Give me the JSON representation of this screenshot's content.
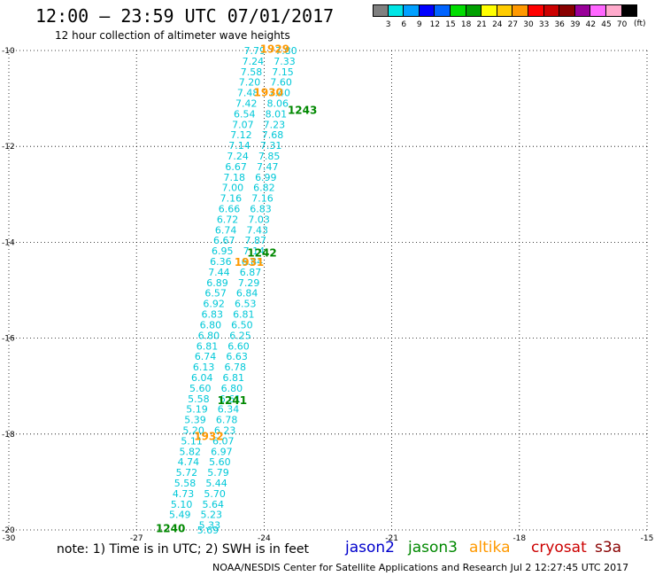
{
  "title": "12:00 – 23:59 UTC 07/01/2017",
  "subtitle": "12 hour collection of altimeter wave heights",
  "note": "note: 1) Time is in UTC; 2) SWH is in feet",
  "satellites": [
    {
      "name": "jason2",
      "color": "#0000cc"
    },
    {
      "name": "jason3",
      "color": "#008800"
    },
    {
      "name": "altika",
      "color": "#ff9900"
    },
    {
      "name": "cryosat",
      "color": "#cc0000"
    },
    {
      "name": "s3a",
      "color": "#880000"
    }
  ],
  "credit": "NOAA/NESDIS Center for Satellite Applications and Research    Jul  2 12:27:45 UTC 2017",
  "colorbar": {
    "labels": [
      "3",
      "6",
      "9",
      "12",
      "15",
      "18",
      "21",
      "24",
      "27",
      "30",
      "33",
      "36",
      "39",
      "42",
      "45",
      "70"
    ],
    "unit": "(ft)",
    "colors": [
      "#808080",
      "#00e5e5",
      "#00a0ff",
      "#0000ff",
      "#0064ff",
      "#00dd00",
      "#00a000",
      "#ffff00",
      "#ffcc00",
      "#ff9900",
      "#ff0000",
      "#cc0000",
      "#880000",
      "#990099",
      "#ff66ff",
      "#ffaacc",
      "#000000"
    ]
  },
  "chart_data": {
    "type": "scatter",
    "xlim": [
      -30,
      -15
    ],
    "ylim": [
      -20,
      -10
    ],
    "x_ticks": [
      "-30",
      "-27",
      "-24",
      "-21",
      "-18",
      "-15"
    ],
    "y_ticks": [
      "-10",
      "-12",
      "-14",
      "-16",
      "-18",
      "-20"
    ],
    "grid": true,
    "series": [
      {
        "name": "jason3",
        "color": "#00c8d8",
        "points": [
          {
            "lon": -24.22,
            "lat": -10.0,
            "swh": "7.79"
          },
          {
            "lon": -24.26,
            "lat": -10.22,
            "swh": "7.24"
          },
          {
            "lon": -24.3,
            "lat": -10.44,
            "swh": "7.58"
          },
          {
            "lon": -24.34,
            "lat": -10.66,
            "swh": "7.20"
          },
          {
            "lon": -24.38,
            "lat": -10.88,
            "swh": "7.48"
          },
          {
            "lon": -24.42,
            "lat": -11.1,
            "swh": "7.42"
          },
          {
            "lon": -24.46,
            "lat": -11.32,
            "swh": "6.54"
          },
          {
            "lon": -24.5,
            "lat": -11.54,
            "swh": "7.07"
          },
          {
            "lon": -24.54,
            "lat": -11.76,
            "swh": "7.12"
          },
          {
            "lon": -24.58,
            "lat": -11.98,
            "swh": "7.14"
          },
          {
            "lon": -24.62,
            "lat": -12.2,
            "swh": "7.24"
          },
          {
            "lon": -24.66,
            "lat": -12.42,
            "swh": "6.67"
          },
          {
            "lon": -24.7,
            "lat": -12.64,
            "swh": "7.18"
          },
          {
            "lon": -24.74,
            "lat": -12.86,
            "swh": "7.00"
          },
          {
            "lon": -24.78,
            "lat": -13.08,
            "swh": "7.16"
          },
          {
            "lon": -24.82,
            "lat": -13.3,
            "swh": "6.66"
          },
          {
            "lon": -24.86,
            "lat": -13.52,
            "swh": "6.72"
          },
          {
            "lon": -24.9,
            "lat": -13.74,
            "swh": "6.74"
          },
          {
            "lon": -24.94,
            "lat": -13.96,
            "swh": "6.67"
          },
          {
            "lon": -24.98,
            "lat": -14.18,
            "swh": "6.95"
          },
          {
            "lon": -25.02,
            "lat": -14.4,
            "swh": "6.36"
          },
          {
            "lon": -25.06,
            "lat": -14.62,
            "swh": "7.44"
          },
          {
            "lon": -25.1,
            "lat": -14.84,
            "swh": "6.89"
          },
          {
            "lon": -25.14,
            "lat": -15.06,
            "swh": "6.57"
          },
          {
            "lon": -25.18,
            "lat": -15.28,
            "swh": "6.92"
          },
          {
            "lon": -25.22,
            "lat": -15.5,
            "swh": "6.83"
          },
          {
            "lon": -25.26,
            "lat": -15.72,
            "swh": "6.80"
          },
          {
            "lon": -25.3,
            "lat": -15.94,
            "swh": "6.80"
          },
          {
            "lon": -25.34,
            "lat": -16.16,
            "swh": "6.81"
          },
          {
            "lon": -25.38,
            "lat": -16.38,
            "swh": "6.74"
          },
          {
            "lon": -25.42,
            "lat": -16.6,
            "swh": "6.13"
          },
          {
            "lon": -25.46,
            "lat": -16.82,
            "swh": "6.04"
          },
          {
            "lon": -25.5,
            "lat": -17.04,
            "swh": "5.60"
          },
          {
            "lon": -25.54,
            "lat": -17.26,
            "swh": "5.58"
          },
          {
            "lon": -25.58,
            "lat": -17.48,
            "swh": "5.19"
          },
          {
            "lon": -25.62,
            "lat": -17.7,
            "swh": "5.39"
          },
          {
            "lon": -25.66,
            "lat": -17.92,
            "swh": "5.20"
          },
          {
            "lon": -25.7,
            "lat": -18.14,
            "swh": "5.11"
          },
          {
            "lon": -25.74,
            "lat": -18.36,
            "swh": "5.82"
          },
          {
            "lon": -25.78,
            "lat": -18.58,
            "swh": "4.74"
          },
          {
            "lon": -25.82,
            "lat": -18.8,
            "swh": "5.72"
          },
          {
            "lon": -25.86,
            "lat": -19.02,
            "swh": "5.58"
          },
          {
            "lon": -25.9,
            "lat": -19.24,
            "swh": "4.73"
          },
          {
            "lon": -25.94,
            "lat": -19.46,
            "swh": "5.10"
          },
          {
            "lon": -25.98,
            "lat": -19.68,
            "swh": "5.49"
          }
        ]
      },
      {
        "name": "jason3",
        "color": "#00c8d8",
        "points": [
          {
            "lon": -23.48,
            "lat": -10.0,
            "swh": "7.80"
          },
          {
            "lon": -23.52,
            "lat": -10.22,
            "swh": "7.33"
          },
          {
            "lon": -23.56,
            "lat": -10.44,
            "swh": "7.15"
          },
          {
            "lon": -23.6,
            "lat": -10.66,
            "swh": "7.60"
          },
          {
            "lon": -23.64,
            "lat": -10.88,
            "swh": "7.40"
          },
          {
            "lon": -23.68,
            "lat": -11.1,
            "swh": "8.06"
          },
          {
            "lon": -23.72,
            "lat": -11.32,
            "swh": "8.01"
          },
          {
            "lon": -23.76,
            "lat": -11.54,
            "swh": "7.23"
          },
          {
            "lon": -23.8,
            "lat": -11.76,
            "swh": "7.68"
          },
          {
            "lon": -23.84,
            "lat": -11.98,
            "swh": "7.31"
          },
          {
            "lon": -23.88,
            "lat": -12.2,
            "swh": "7.85"
          },
          {
            "lon": -23.92,
            "lat": -12.42,
            "swh": "7.47"
          },
          {
            "lon": -23.96,
            "lat": -12.64,
            "swh": "6.99"
          },
          {
            "lon": -24.0,
            "lat": -12.86,
            "swh": "6.82"
          },
          {
            "lon": -24.04,
            "lat": -13.08,
            "swh": "7.16"
          },
          {
            "lon": -24.08,
            "lat": -13.3,
            "swh": "6.83"
          },
          {
            "lon": -24.12,
            "lat": -13.52,
            "swh": "7.03"
          },
          {
            "lon": -24.16,
            "lat": -13.74,
            "swh": "7.43"
          },
          {
            "lon": -24.2,
            "lat": -13.96,
            "swh": "7.87"
          },
          {
            "lon": -24.24,
            "lat": -14.18,
            "swh": "7.14"
          },
          {
            "lon": -24.28,
            "lat": -14.4,
            "swh": "6.84"
          },
          {
            "lon": -24.32,
            "lat": -14.62,
            "swh": "6.87"
          },
          {
            "lon": -24.36,
            "lat": -14.84,
            "swh": "7.29"
          },
          {
            "lon": -24.4,
            "lat": -15.06,
            "swh": "6.84"
          },
          {
            "lon": -24.44,
            "lat": -15.28,
            "swh": "6.53"
          },
          {
            "lon": -24.48,
            "lat": -15.5,
            "swh": "6.81"
          },
          {
            "lon": -24.52,
            "lat": -15.72,
            "swh": "6.50"
          },
          {
            "lon": -24.56,
            "lat": -15.94,
            "swh": "6.25"
          },
          {
            "lon": -24.6,
            "lat": -16.16,
            "swh": "6.60"
          },
          {
            "lon": -24.64,
            "lat": -16.38,
            "swh": "6.63"
          },
          {
            "lon": -24.68,
            "lat": -16.6,
            "swh": "6.78"
          },
          {
            "lon": -24.72,
            "lat": -16.82,
            "swh": "6.81"
          },
          {
            "lon": -24.76,
            "lat": -17.04,
            "swh": "6.80"
          },
          {
            "lon": -24.8,
            "lat": -17.26,
            "swh": "6.61"
          },
          {
            "lon": -24.84,
            "lat": -17.48,
            "swh": "6.34"
          },
          {
            "lon": -24.88,
            "lat": -17.7,
            "swh": "6.78"
          },
          {
            "lon": -24.92,
            "lat": -17.92,
            "swh": "6.23"
          },
          {
            "lon": -24.96,
            "lat": -18.14,
            "swh": "6.07"
          },
          {
            "lon": -25.0,
            "lat": -18.36,
            "swh": "6.97"
          },
          {
            "lon": -25.04,
            "lat": -18.58,
            "swh": "5.60"
          },
          {
            "lon": -25.08,
            "lat": -18.8,
            "swh": "5.79"
          },
          {
            "lon": -25.12,
            "lat": -19.02,
            "swh": "5.44"
          },
          {
            "lon": -25.16,
            "lat": -19.24,
            "swh": "5.70"
          },
          {
            "lon": -25.2,
            "lat": -19.46,
            "swh": "5.64"
          },
          {
            "lon": -25.24,
            "lat": -19.68,
            "swh": "5.23"
          },
          {
            "lon": -25.28,
            "lat": -19.9,
            "swh": "5.33"
          },
          {
            "lon": -25.32,
            "lat": -20.0,
            "swh": "5.69"
          }
        ]
      }
    ],
    "time_labels": [
      {
        "text": "1929",
        "lon": -23.75,
        "lat": -9.97,
        "color": "#ff9900"
      },
      {
        "text": "1930",
        "lon": -23.9,
        "lat": -10.88,
        "color": "#ff9900"
      },
      {
        "text": "1243",
        "lon": -23.1,
        "lat": -11.25,
        "color": "#008800"
      },
      {
        "text": "1242",
        "lon": -24.05,
        "lat": -14.22,
        "color": "#008800"
      },
      {
        "text": "1931",
        "lon": -24.35,
        "lat": -14.42,
        "color": "#ff9900"
      },
      {
        "text": "1241",
        "lon": -24.75,
        "lat": -17.3,
        "color": "#008800"
      },
      {
        "text": "1932",
        "lon": -25.3,
        "lat": -18.05,
        "color": "#ff9900"
      },
      {
        "text": "1240",
        "lon": -26.2,
        "lat": -19.97,
        "color": "#008800"
      }
    ]
  }
}
